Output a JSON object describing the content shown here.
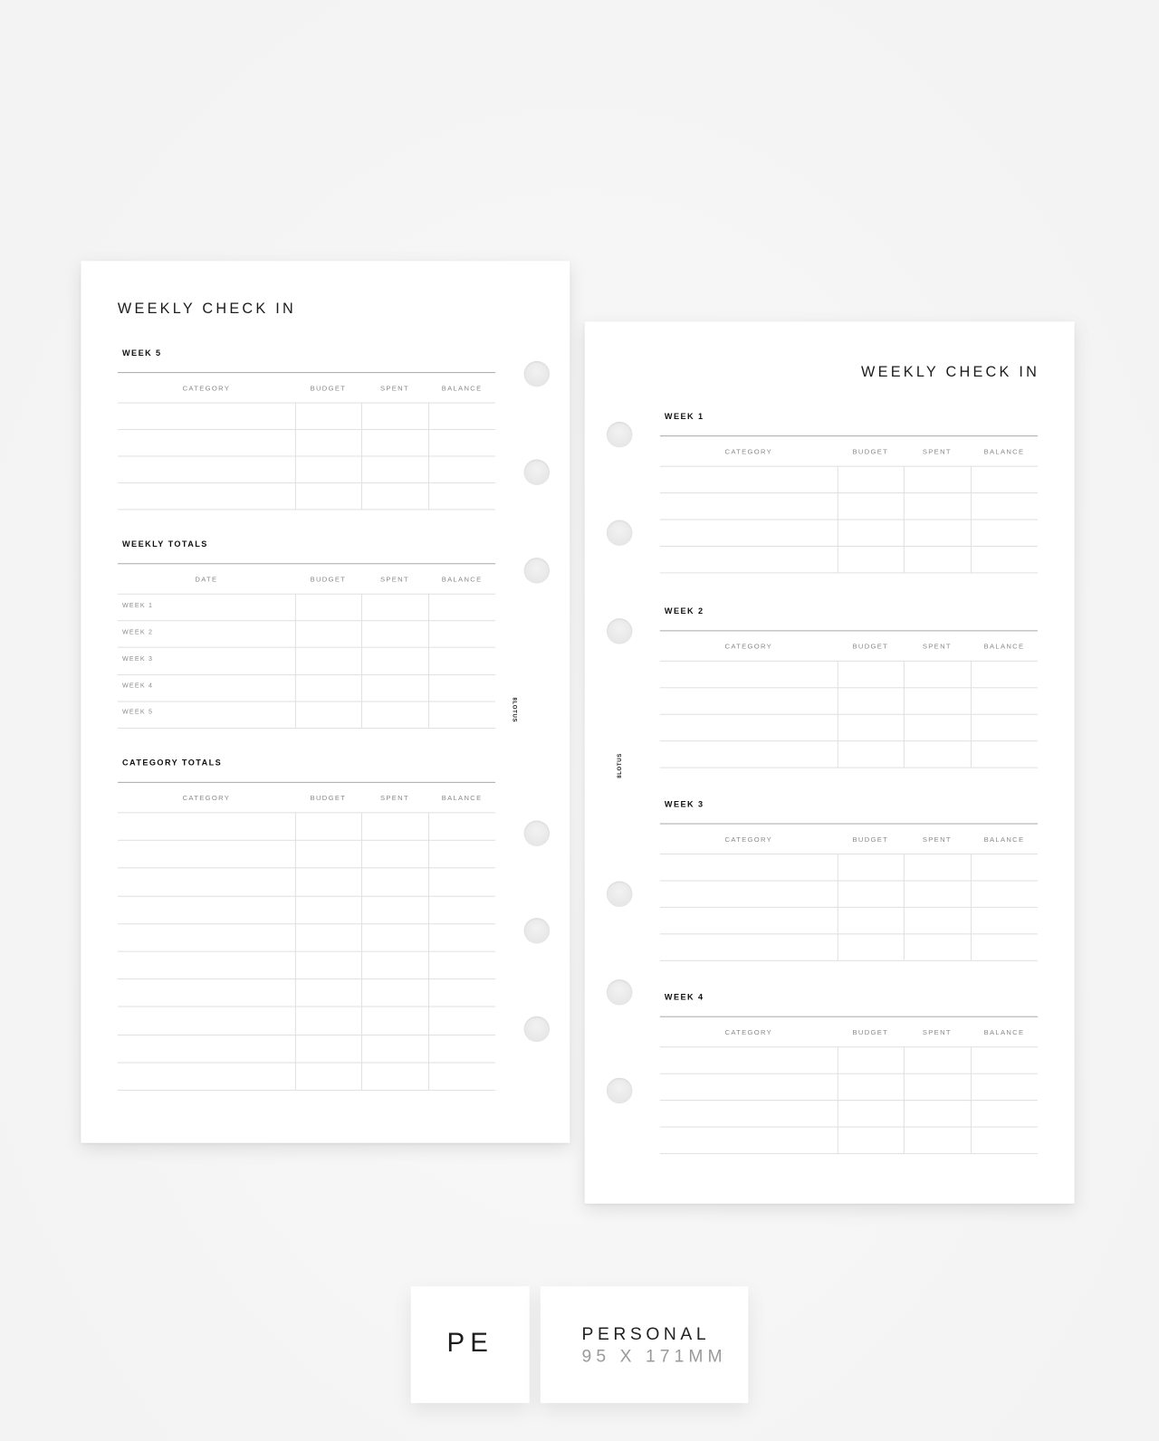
{
  "left_page": {
    "title": "WEEKLY CHECK IN",
    "brand": "8LOTUS",
    "sections": [
      {
        "label": "WEEK 5",
        "headers": [
          "CATEGORY",
          "BUDGET",
          "SPENT",
          "BALANCE"
        ],
        "rows": [
          "",
          "",
          "",
          ""
        ]
      },
      {
        "label": "WEEKLY TOTALS",
        "headers": [
          "DATE",
          "BUDGET",
          "SPENT",
          "BALANCE"
        ],
        "rows": [
          "WEEK 1",
          "WEEK 2",
          "WEEK 3",
          "WEEK 4",
          "WEEK 5"
        ]
      },
      {
        "label": "CATEGORY TOTALS",
        "headers": [
          "CATEGORY",
          "BUDGET",
          "SPENT",
          "BALANCE"
        ],
        "rows": [
          "",
          "",
          "",
          "",
          "",
          "",
          "",
          "",
          "",
          ""
        ]
      }
    ]
  },
  "right_page": {
    "title": "WEEKLY CHECK IN",
    "brand": "8LOTUS",
    "sections": [
      {
        "label": "WEEK 1",
        "headers": [
          "CATEGORY",
          "BUDGET",
          "SPENT",
          "BALANCE"
        ],
        "rows": [
          "",
          "",
          "",
          ""
        ]
      },
      {
        "label": "WEEK 2",
        "headers": [
          "CATEGORY",
          "BUDGET",
          "SPENT",
          "BALANCE"
        ],
        "rows": [
          "",
          "",
          "",
          ""
        ]
      },
      {
        "label": "WEEK 3",
        "headers": [
          "CATEGORY",
          "BUDGET",
          "SPENT",
          "BALANCE"
        ],
        "rows": [
          "",
          "",
          "",
          ""
        ]
      },
      {
        "label": "WEEK 4",
        "headers": [
          "CATEGORY",
          "BUDGET",
          "SPENT",
          "BALANCE"
        ],
        "rows": [
          "",
          "",
          "",
          ""
        ]
      }
    ]
  },
  "size_badge": {
    "code": "PE",
    "name": "PERSONAL",
    "dimensions": "95 X 171MM"
  }
}
